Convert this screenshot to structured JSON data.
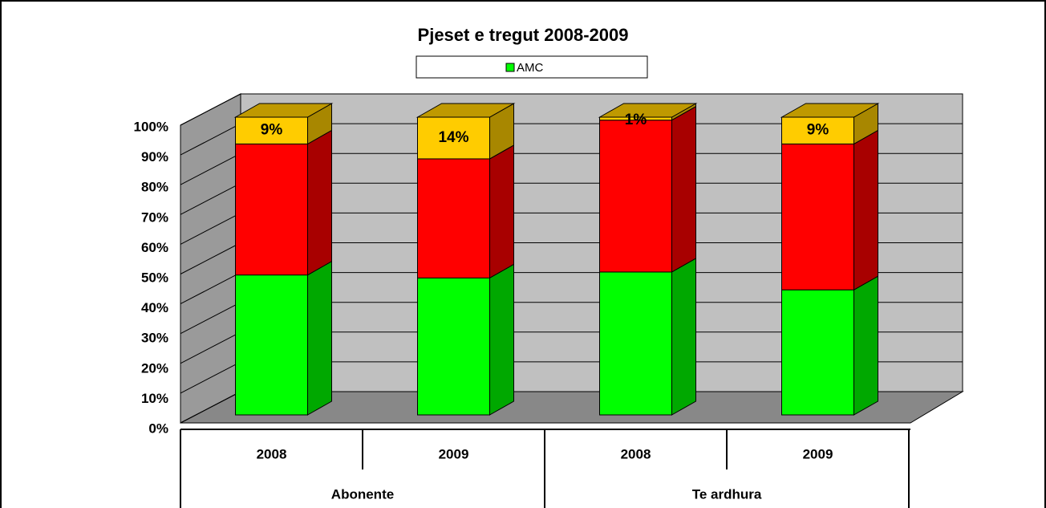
{
  "chart_data": {
    "type": "bar3d-stacked",
    "title": "Pjeset e tregut 2008-2009",
    "categories": [
      "2008",
      "2009",
      "2008",
      "2009"
    ],
    "category_groups": [
      "Abonente",
      "Te ardhura"
    ],
    "series": [
      {
        "name": "AMC",
        "color": "#00ff00",
        "values": [
          47,
          46,
          48,
          42
        ]
      },
      {
        "color": "#ff0000",
        "values": [
          44,
          40,
          51,
          49
        ]
      },
      {
        "color": "#ffcc00",
        "values": [
          9,
          14,
          1,
          9
        ],
        "value_labels": [
          "9%",
          "14%",
          "1%",
          "9%"
        ]
      }
    ],
    "ylim": [
      0,
      100
    ],
    "yticks": [
      {
        "value": 0,
        "label": "0%"
      },
      {
        "value": 10,
        "label": "10%"
      },
      {
        "value": 20,
        "label": "20%"
      },
      {
        "value": 30,
        "label": "30%"
      },
      {
        "value": 40,
        "label": "40%"
      },
      {
        "value": 50,
        "label": "50%"
      },
      {
        "value": 60,
        "label": "60%"
      },
      {
        "value": 70,
        "label": "70%"
      },
      {
        "value": 80,
        "label": "80%"
      },
      {
        "value": 90,
        "label": "90%"
      },
      {
        "value": 100,
        "label": "100%"
      }
    ],
    "grid": true
  }
}
